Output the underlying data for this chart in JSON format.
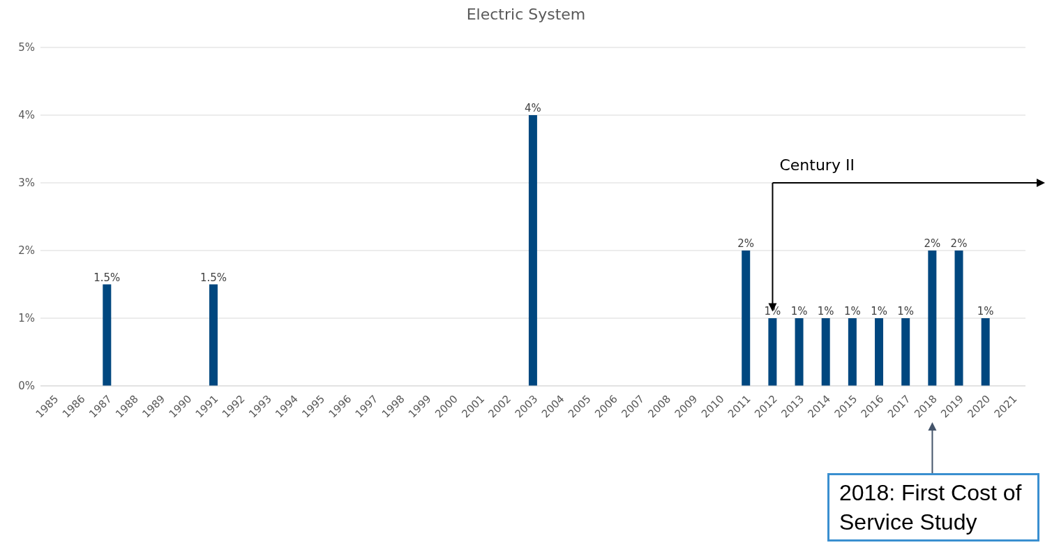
{
  "chart_data": {
    "type": "bar",
    "title": "Electric System",
    "categories": [
      "1985",
      "1986",
      "1987",
      "1988",
      "1989",
      "1990",
      "1991",
      "1992",
      "1993",
      "1994",
      "1995",
      "1996",
      "1997",
      "1998",
      "1999",
      "2000",
      "2001",
      "2002",
      "2003",
      "2004",
      "2005",
      "2006",
      "2007",
      "2008",
      "2009",
      "2010",
      "2011",
      "2012",
      "2013",
      "2014",
      "2015",
      "2016",
      "2017",
      "2018",
      "2019",
      "2020",
      "2021"
    ],
    "values": [
      null,
      null,
      1.5,
      null,
      null,
      null,
      1.5,
      null,
      null,
      null,
      null,
      null,
      null,
      null,
      null,
      null,
      null,
      null,
      4,
      null,
      null,
      null,
      null,
      null,
      null,
      null,
      2,
      1,
      1,
      1,
      1,
      1,
      1,
      2,
      2,
      1,
      null
    ],
    "value_labels": [
      null,
      null,
      "1.5%",
      null,
      null,
      null,
      "1.5%",
      null,
      null,
      null,
      null,
      null,
      null,
      null,
      null,
      null,
      null,
      null,
      "4%",
      null,
      null,
      null,
      null,
      null,
      null,
      null,
      "2%",
      "1%",
      "1%",
      "1%",
      "1%",
      "1%",
      "1%",
      "2%",
      "2%",
      "1%",
      null
    ],
    "color": "#00477f",
    "ylim": [
      0,
      5
    ],
    "yticks": [
      {
        "value": 0,
        "label": "0%"
      },
      {
        "value": 1,
        "label": "1%"
      },
      {
        "value": 2,
        "label": "2%"
      },
      {
        "value": 3,
        "label": "3%"
      },
      {
        "value": 4,
        "label": "4%"
      },
      {
        "value": 5,
        "label": "5%"
      }
    ],
    "grid": "y",
    "annotations": [
      "Century II",
      "2018: First Cost of Service Study"
    ]
  }
}
